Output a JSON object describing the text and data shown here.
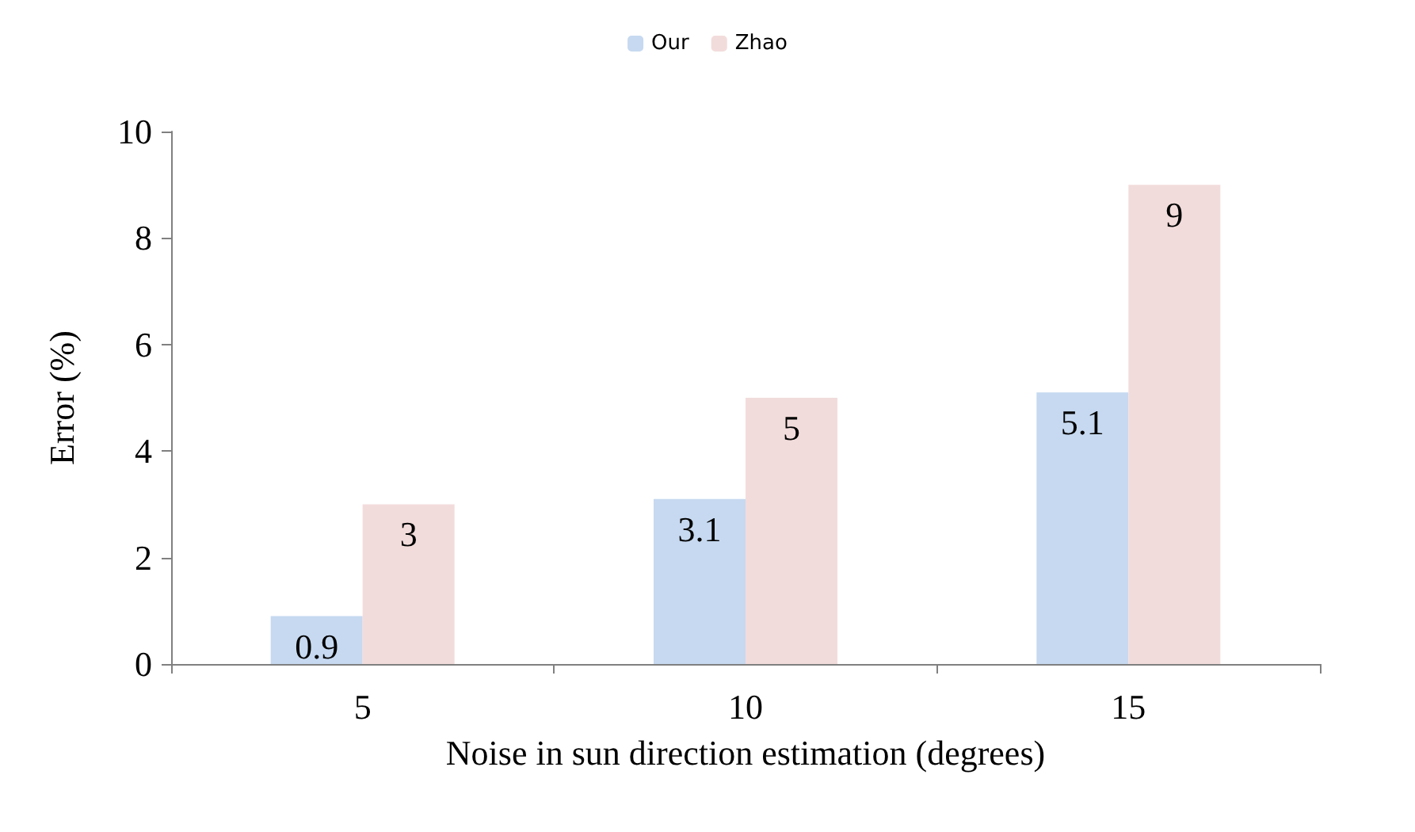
{
  "chart_data": {
    "type": "bar",
    "xlabel": "Noise in sun direction estimation (degrees)",
    "ylabel": "Error (%)",
    "categories": [
      "5",
      "10",
      "15"
    ],
    "series": [
      {
        "name": "Our",
        "color": "#c6d9f0",
        "values": [
          0.9,
          3.1,
          5.1
        ]
      },
      {
        "name": "Zhao",
        "color": "#f2dcdb",
        "values": [
          3,
          5,
          9
        ]
      }
    ],
    "ylim": [
      0,
      10
    ],
    "yticks": [
      0,
      2,
      4,
      6,
      8,
      10
    ],
    "grid": false,
    "legend": "top",
    "data_labels": true
  }
}
